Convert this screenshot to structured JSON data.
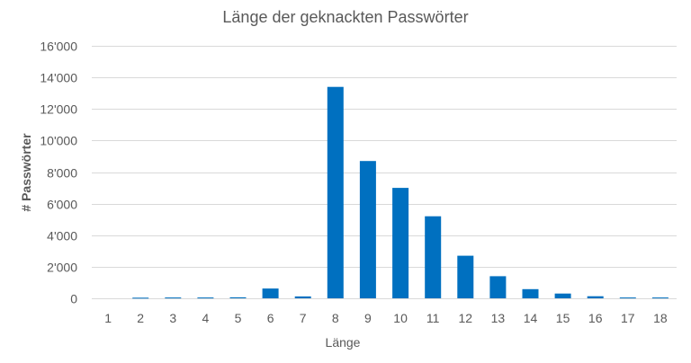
{
  "chart_data": {
    "type": "bar",
    "title": "Länge der geknackten Passwörter",
    "xlabel": "Länge",
    "ylabel": "# Passwörter",
    "categories": [
      "1",
      "2",
      "3",
      "4",
      "5",
      "6",
      "7",
      "8",
      "9",
      "10",
      "11",
      "12",
      "13",
      "14",
      "15",
      "16",
      "17",
      "18"
    ],
    "values": [
      0,
      40,
      50,
      50,
      60,
      620,
      120,
      13400,
      8700,
      7000,
      5200,
      2700,
      1400,
      580,
      300,
      130,
      50,
      50
    ],
    "ylim": [
      0,
      16000
    ],
    "yticks": [
      0,
      2000,
      4000,
      6000,
      8000,
      10000,
      12000,
      14000,
      16000
    ],
    "ytick_labels": [
      "0",
      "2'000",
      "4'000",
      "6'000",
      "8'000",
      "10'000",
      "12'000",
      "14'000",
      "16'000"
    ],
    "grid": true,
    "legend": "none",
    "bar_color": "#0070C0"
  }
}
